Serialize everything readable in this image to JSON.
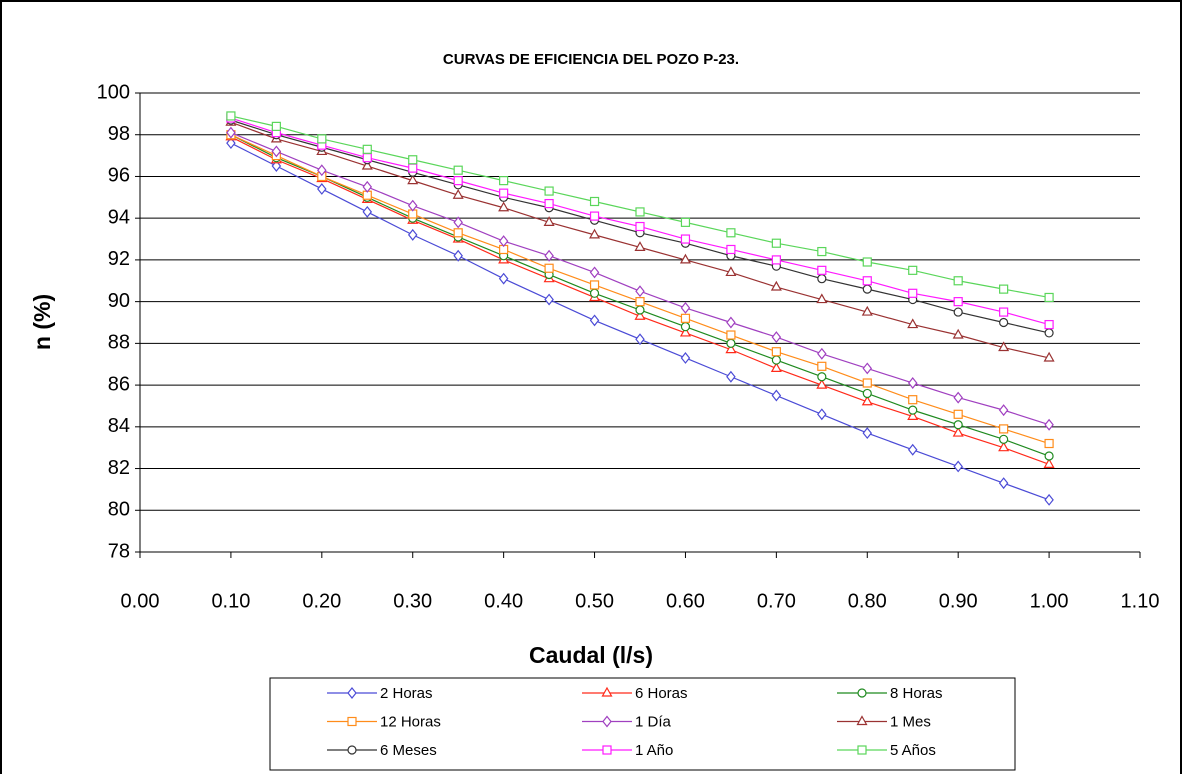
{
  "chart_data": {
    "type": "line",
    "title": "CURVAS DE EFICIENCIA DEL POZO P-23.",
    "x_label": "Caudal (l/s)",
    "y_label": "n (%)",
    "x": [
      0.1,
      0.15,
      0.2,
      0.25,
      0.3,
      0.35,
      0.4,
      0.45,
      0.5,
      0.55,
      0.6,
      0.65,
      0.7,
      0.75,
      0.8,
      0.85,
      0.9,
      0.95,
      1.0
    ],
    "series": [
      {
        "name": "2 Horas",
        "color": "#4b4bd6",
        "marker": "diamond",
        "values": [
          97.6,
          96.5,
          95.4,
          94.3,
          93.2,
          92.2,
          91.1,
          90.1,
          89.1,
          88.2,
          87.3,
          86.4,
          85.5,
          84.6,
          83.7,
          82.9,
          82.1,
          81.3,
          80.5
        ]
      },
      {
        "name": "6 Horas",
        "color": "#ff2a1a",
        "marker": "triangle",
        "values": [
          97.9,
          96.8,
          95.9,
          94.9,
          93.9,
          93.0,
          92.0,
          91.1,
          90.2,
          89.3,
          88.5,
          87.7,
          86.8,
          86.0,
          85.2,
          84.5,
          83.7,
          83.0,
          82.2
        ]
      },
      {
        "name": "8 Horas",
        "color": "#1f8a1f",
        "marker": "circle",
        "values": [
          98.0,
          96.9,
          96.0,
          95.0,
          94.0,
          93.1,
          92.2,
          91.3,
          90.4,
          89.6,
          88.8,
          88.0,
          87.2,
          86.4,
          85.6,
          84.8,
          84.1,
          83.4,
          82.6
        ]
      },
      {
        "name": "12 Horas",
        "color": "#ff8c1a",
        "marker": "square",
        "values": [
          98.0,
          97.0,
          96.0,
          95.1,
          94.2,
          93.3,
          92.5,
          91.6,
          90.8,
          90.0,
          89.2,
          88.4,
          87.6,
          86.9,
          86.1,
          85.3,
          84.6,
          83.9,
          83.2
        ]
      },
      {
        "name": "1 Día",
        "color": "#a040c0",
        "marker": "diamond",
        "values": [
          98.1,
          97.2,
          96.3,
          95.5,
          94.6,
          93.8,
          92.9,
          92.2,
          91.4,
          90.5,
          89.7,
          89.0,
          88.3,
          87.5,
          86.8,
          86.1,
          85.4,
          84.8,
          84.1
        ]
      },
      {
        "name": "1 Mes",
        "color": "#9a3232",
        "marker": "triangle",
        "values": [
          98.6,
          97.8,
          97.2,
          96.5,
          95.8,
          95.1,
          94.5,
          93.8,
          93.2,
          92.6,
          92.0,
          91.4,
          90.7,
          90.1,
          89.5,
          88.9,
          88.4,
          87.8,
          87.3
        ]
      },
      {
        "name": "6 Meses",
        "color": "#333333",
        "marker": "circle",
        "values": [
          98.7,
          98.0,
          97.4,
          96.8,
          96.2,
          95.6,
          95.0,
          94.5,
          93.9,
          93.3,
          92.8,
          92.2,
          91.7,
          91.1,
          90.6,
          90.1,
          89.5,
          89.0,
          88.5
        ]
      },
      {
        "name": "1 Año",
        "color": "#ff1aff",
        "marker": "square",
        "values": [
          98.8,
          98.1,
          97.5,
          96.9,
          96.4,
          95.8,
          95.2,
          94.7,
          94.1,
          93.6,
          93.0,
          92.5,
          92.0,
          91.5,
          91.0,
          90.4,
          90.0,
          89.5,
          88.9
        ]
      },
      {
        "name": "5 Años",
        "color": "#5ad65a",
        "marker": "square",
        "values": [
          98.9,
          98.4,
          97.8,
          97.3,
          96.8,
          96.3,
          95.8,
          95.3,
          94.8,
          94.3,
          93.8,
          93.3,
          92.8,
          92.4,
          91.9,
          91.5,
          91.0,
          90.6,
          90.2
        ]
      }
    ],
    "xlim": [
      0,
      1.1
    ],
    "xticks": [
      {
        "value": 0,
        "label": "0.00"
      },
      {
        "value": 0.1,
        "label": "0.10"
      },
      {
        "value": 0.2,
        "label": "0.20"
      },
      {
        "value": 0.3,
        "label": "0.30"
      },
      {
        "value": 0.4,
        "label": "0.40"
      },
      {
        "value": 0.5,
        "label": "0.50"
      },
      {
        "value": 0.6,
        "label": "0.60"
      },
      {
        "value": 0.7,
        "label": "0.70"
      },
      {
        "value": 0.8,
        "label": "0.80"
      },
      {
        "value": 0.9,
        "label": "0.90"
      },
      {
        "value": 1.0,
        "label": "1.00"
      },
      {
        "value": 1.1,
        "label": "1.10"
      }
    ],
    "ylim": [
      78,
      100
    ],
    "yticks": [
      78,
      80,
      82,
      84,
      86,
      88,
      90,
      92,
      94,
      96,
      98,
      100
    ],
    "grid": true,
    "legend": "bottom"
  }
}
